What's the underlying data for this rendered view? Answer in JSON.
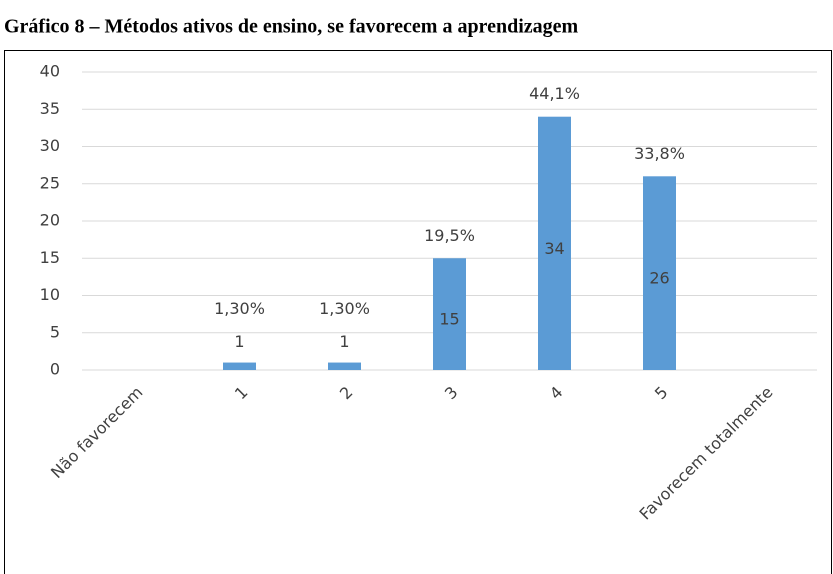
{
  "chart_data": {
    "type": "bar",
    "title": "Gráfico 8 – Métodos ativos de ensino, se favorecem a aprendizagem",
    "categories": [
      "Não favorecem",
      "1",
      "2",
      "3",
      "4",
      "5",
      "Favorecem totalmente"
    ],
    "values": [
      null,
      1,
      1,
      15,
      34,
      26,
      null
    ],
    "percent_labels": [
      null,
      "1,30%",
      "1,30%",
      "19,5%",
      "44,1%",
      "33,8%",
      null
    ],
    "color": "#5b9bd5",
    "ylim": [
      0,
      40
    ],
    "yticks": [
      0,
      5,
      10,
      15,
      20,
      25,
      30,
      35,
      40
    ],
    "grid": true
  }
}
